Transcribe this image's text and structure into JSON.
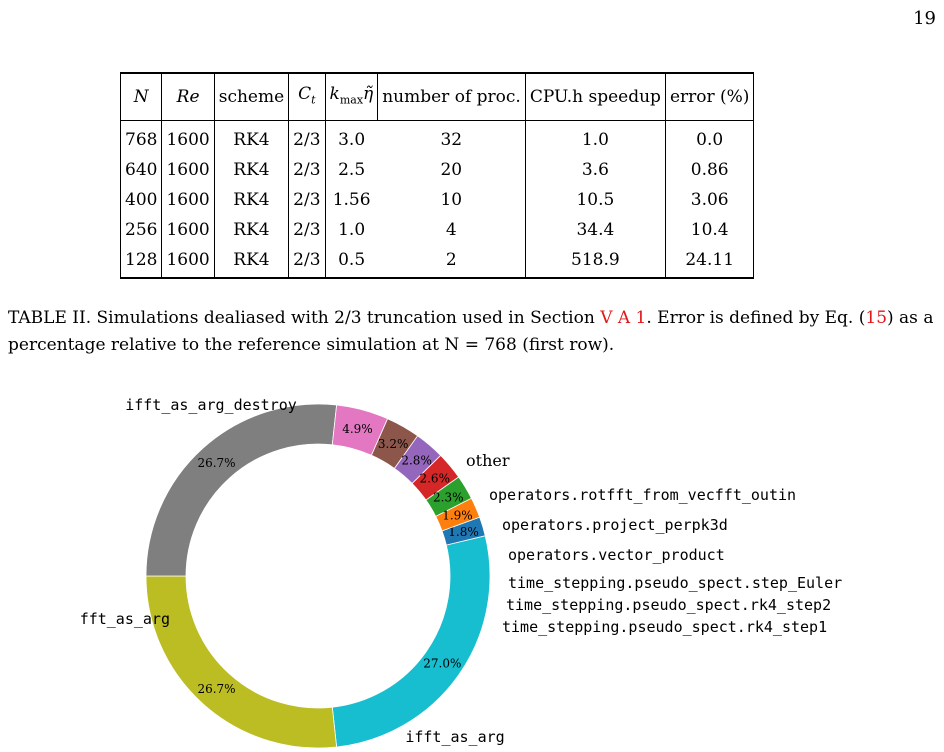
{
  "page_number": "19",
  "table": {
    "headers": [
      "N",
      "Re",
      "scheme",
      "C_t",
      "k_max η",
      "number of proc.",
      "CPU.h speedup",
      "error (%)"
    ],
    "rows": [
      [
        "768",
        "1600",
        "RK4",
        "2/3",
        "3.0",
        "32",
        "1.0",
        "0.0"
      ],
      [
        "640",
        "1600",
        "RK4",
        "2/3",
        "2.5",
        "20",
        "3.6",
        "0.86"
      ],
      [
        "400",
        "1600",
        "RK4",
        "2/3",
        "1.56",
        "10",
        "10.5",
        "3.06"
      ],
      [
        "256",
        "1600",
        "RK4",
        "2/3",
        "1.0",
        "4",
        "34.4",
        "10.4"
      ],
      [
        "128",
        "1600",
        "RK4",
        "2/3",
        "0.5",
        "2",
        "518.9",
        "24.11"
      ]
    ]
  },
  "caption": {
    "part1": "TABLE II. Simulations dealiased with 2/3 truncation used in Section ",
    "ref_section": "V A 1",
    "part2": ". Error is defined by Eq. (",
    "ref_eq": "15",
    "part3": ") as a percentage relative to the reference simulation at N = 768 (first row)."
  },
  "chart_data": {
    "type": "pie",
    "title": "",
    "slices": [
      {
        "name": "time_stepping.pseudo_spect.rk4_step1",
        "value": 1.8,
        "label": "1.8%",
        "color": "#1f77b4"
      },
      {
        "name": "ifft_as_arg",
        "value": 27.0,
        "label": "27.0%",
        "color": "#17becf"
      },
      {
        "name": "fft_as_arg",
        "value": 26.7,
        "label": "26.7%",
        "color": "#bcbd22"
      },
      {
        "name": "ifft_as_arg_destroy",
        "value": 26.7,
        "label": "26.7%",
        "color": "#7f7f7f"
      },
      {
        "name": "other",
        "value": 4.9,
        "label": "4.9%",
        "color": "#e377c2"
      },
      {
        "name": "operators.rotfft_from_vecfft_outin",
        "value": 3.2,
        "label": "3.2%",
        "color": "#8c564b"
      },
      {
        "name": "operators.project_perpk3d",
        "value": 2.8,
        "label": "2.8%",
        "color": "#9467bd"
      },
      {
        "name": "operators.vector_product",
        "value": 2.6,
        "label": "2.6%",
        "color": "#d62728"
      },
      {
        "name": "time_stepping.pseudo_spect.step_Euler",
        "value": 2.3,
        "label": "2.3%",
        "color": "#2ca02c"
      },
      {
        "name": "time_stepping.pseudo_spect.rk4_step2",
        "value": 1.9,
        "label": "1.9%",
        "color": "#ff7f0e"
      }
    ]
  }
}
